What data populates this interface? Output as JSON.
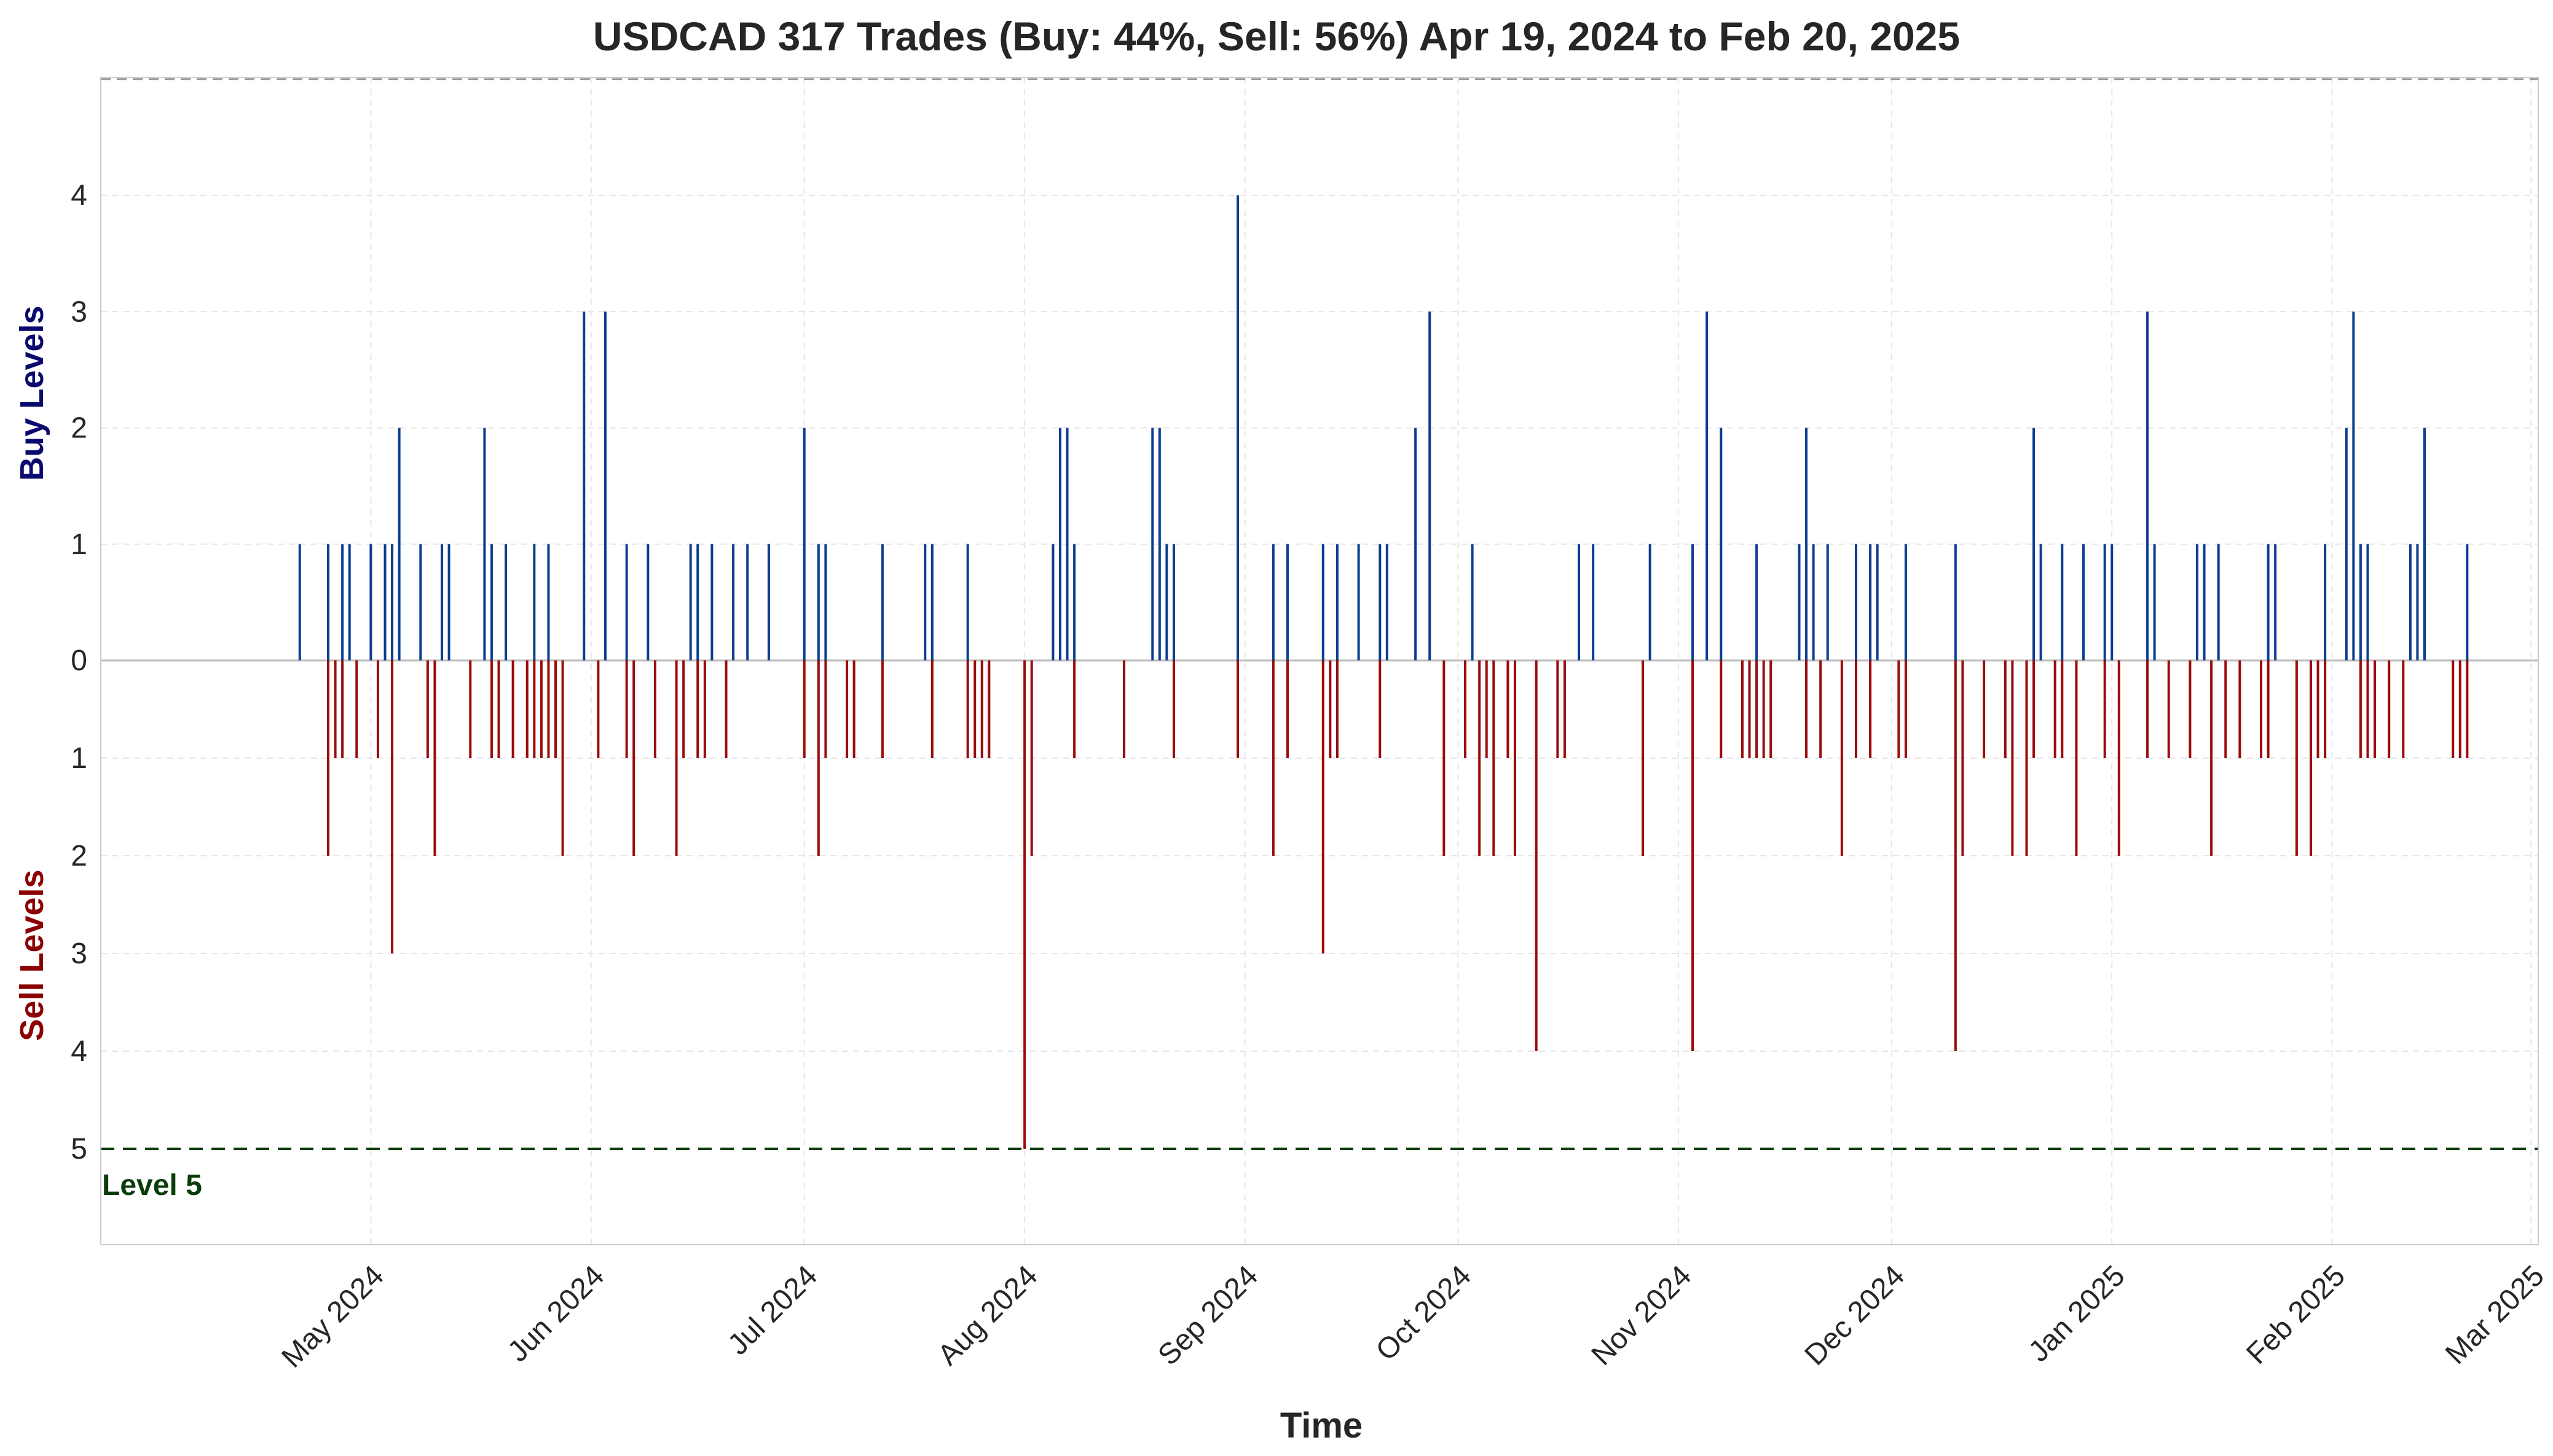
{
  "chart_data": {
    "type": "bar",
    "title": "USDCAD 317 Trades (Buy: 44%, Sell: 56%) Apr 19, 2024 to Feb 20, 2025",
    "xlabel": "Time",
    "ylabel_buy": "Buy Levels",
    "ylabel_sell": "Sell Levels",
    "level5_label": "Level 5",
    "x_ticks": [
      "May 2024",
      "Jun 2024",
      "Jul 2024",
      "Aug 2024",
      "Sep 2024",
      "Oct 2024",
      "Nov 2024",
      "Dec 2024",
      "Jan 2025",
      "Feb 2025",
      "Mar 2025"
    ],
    "y_ticks_buy": [
      "0",
      "1",
      "2",
      "3",
      "4"
    ],
    "y_ticks_sell": [
      "1",
      "2",
      "3",
      "4",
      "5"
    ],
    "x_range": [
      "2024-03-24",
      "2025-03-02"
    ],
    "buy_ylim": [
      0,
      5
    ],
    "sell_ylim": [
      0,
      6
    ],
    "grid": true,
    "colors": {
      "buy": "#0b3d91",
      "sell": "#9b0b0b",
      "level5": "#0a3d0a",
      "buy_label": "#0a0a6e",
      "sell_label": "#8b0000"
    },
    "series": [
      {
        "name": "Buy",
        "points": [
          [
            "2024-04-21",
            1
          ],
          [
            "2024-04-25",
            1
          ],
          [
            "2024-04-27",
            1
          ],
          [
            "2024-04-28",
            1
          ],
          [
            "2024-05-01",
            1
          ],
          [
            "2024-05-03",
            1
          ],
          [
            "2024-05-04",
            1
          ],
          [
            "2024-05-05",
            2
          ],
          [
            "2024-05-08",
            1
          ],
          [
            "2024-05-11",
            1
          ],
          [
            "2024-05-12",
            1
          ],
          [
            "2024-05-17",
            2
          ],
          [
            "2024-05-18",
            1
          ],
          [
            "2024-05-20",
            1
          ],
          [
            "2024-05-24",
            1
          ],
          [
            "2024-05-26",
            1
          ],
          [
            "2024-05-31",
            3
          ],
          [
            "2024-06-03",
            3
          ],
          [
            "2024-06-06",
            1
          ],
          [
            "2024-06-09",
            1
          ],
          [
            "2024-06-15",
            1
          ],
          [
            "2024-06-16",
            1
          ],
          [
            "2024-06-18",
            1
          ],
          [
            "2024-06-21",
            1
          ],
          [
            "2024-06-23",
            1
          ],
          [
            "2024-06-26",
            1
          ],
          [
            "2024-07-01",
            2
          ],
          [
            "2024-07-03",
            1
          ],
          [
            "2024-07-04",
            1
          ],
          [
            "2024-07-12",
            1
          ],
          [
            "2024-07-18",
            1
          ],
          [
            "2024-07-19",
            1
          ],
          [
            "2024-07-24",
            1
          ],
          [
            "2024-08-05",
            1
          ],
          [
            "2024-08-06",
            2
          ],
          [
            "2024-08-07",
            2
          ],
          [
            "2024-08-08",
            1
          ],
          [
            "2024-08-19",
            2
          ],
          [
            "2024-08-20",
            2
          ],
          [
            "2024-08-21",
            1
          ],
          [
            "2024-08-22",
            1
          ],
          [
            "2024-08-31",
            4
          ],
          [
            "2024-09-05",
            1
          ],
          [
            "2024-09-07",
            1
          ],
          [
            "2024-09-12",
            1
          ],
          [
            "2024-09-14",
            1
          ],
          [
            "2024-09-17",
            1
          ],
          [
            "2024-09-20",
            1
          ],
          [
            "2024-09-21",
            1
          ],
          [
            "2024-09-25",
            2
          ],
          [
            "2024-09-27",
            3
          ],
          [
            "2024-10-03",
            1
          ],
          [
            "2024-10-18",
            1
          ],
          [
            "2024-10-20",
            1
          ],
          [
            "2024-10-28",
            1
          ],
          [
            "2024-11-03",
            1
          ],
          [
            "2024-11-05",
            3
          ],
          [
            "2024-11-07",
            2
          ],
          [
            "2024-11-12",
            1
          ],
          [
            "2024-11-18",
            1
          ],
          [
            "2024-11-19",
            2
          ],
          [
            "2024-11-20",
            1
          ],
          [
            "2024-11-22",
            1
          ],
          [
            "2024-11-26",
            1
          ],
          [
            "2024-11-28",
            1
          ],
          [
            "2024-11-29",
            1
          ],
          [
            "2024-12-03",
            1
          ],
          [
            "2024-12-10",
            1
          ],
          [
            "2024-12-21",
            2
          ],
          [
            "2024-12-22",
            1
          ],
          [
            "2024-12-25",
            1
          ],
          [
            "2024-12-28",
            1
          ],
          [
            "2024-12-31",
            1
          ],
          [
            "2025-01-01",
            1
          ],
          [
            "2025-01-06",
            3
          ],
          [
            "2025-01-07",
            1
          ],
          [
            "2025-01-13",
            1
          ],
          [
            "2025-01-14",
            1
          ],
          [
            "2025-01-16",
            1
          ],
          [
            "2025-01-23",
            1
          ],
          [
            "2025-01-24",
            1
          ],
          [
            "2025-01-31",
            1
          ],
          [
            "2025-02-03",
            2
          ],
          [
            "2025-02-04",
            3
          ],
          [
            "2025-02-05",
            1
          ],
          [
            "2025-02-06",
            1
          ],
          [
            "2025-02-12",
            1
          ],
          [
            "2025-02-13",
            1
          ],
          [
            "2025-02-14",
            2
          ],
          [
            "2025-02-20",
            1
          ]
        ]
      },
      {
        "name": "Sell",
        "points": [
          [
            "2024-04-25",
            2
          ],
          [
            "2024-04-26",
            1
          ],
          [
            "2024-04-27",
            1
          ],
          [
            "2024-04-29",
            1
          ],
          [
            "2024-05-02",
            1
          ],
          [
            "2024-05-04",
            3
          ],
          [
            "2024-05-09",
            1
          ],
          [
            "2024-05-10",
            2
          ],
          [
            "2024-05-15",
            1
          ],
          [
            "2024-05-18",
            1
          ],
          [
            "2024-05-19",
            1
          ],
          [
            "2024-05-21",
            1
          ],
          [
            "2024-05-23",
            1
          ],
          [
            "2024-05-24",
            1
          ],
          [
            "2024-05-25",
            1
          ],
          [
            "2024-05-26",
            1
          ],
          [
            "2024-05-27",
            1
          ],
          [
            "2024-05-28",
            2
          ],
          [
            "2024-06-02",
            1
          ],
          [
            "2024-06-06",
            1
          ],
          [
            "2024-06-07",
            2
          ],
          [
            "2024-06-10",
            1
          ],
          [
            "2024-06-13",
            2
          ],
          [
            "2024-06-14",
            1
          ],
          [
            "2024-06-16",
            1
          ],
          [
            "2024-06-17",
            1
          ],
          [
            "2024-06-20",
            1
          ],
          [
            "2024-07-01",
            1
          ],
          [
            "2024-07-03",
            2
          ],
          [
            "2024-07-04",
            1
          ],
          [
            "2024-07-07",
            1
          ],
          [
            "2024-07-08",
            1
          ],
          [
            "2024-07-12",
            1
          ],
          [
            "2024-07-19",
            1
          ],
          [
            "2024-07-24",
            1
          ],
          [
            "2024-07-25",
            1
          ],
          [
            "2024-07-26",
            1
          ],
          [
            "2024-07-27",
            1
          ],
          [
            "2024-08-01",
            5
          ],
          [
            "2024-08-02",
            2
          ],
          [
            "2024-08-08",
            1
          ],
          [
            "2024-08-15",
            1
          ],
          [
            "2024-08-22",
            1
          ],
          [
            "2024-08-31",
            1
          ],
          [
            "2024-09-05",
            2
          ],
          [
            "2024-09-07",
            1
          ],
          [
            "2024-09-12",
            3
          ],
          [
            "2024-09-13",
            1
          ],
          [
            "2024-09-14",
            1
          ],
          [
            "2024-09-20",
            1
          ],
          [
            "2024-09-29",
            2
          ],
          [
            "2024-10-02",
            1
          ],
          [
            "2024-10-04",
            2
          ],
          [
            "2024-10-05",
            1
          ],
          [
            "2024-10-06",
            2
          ],
          [
            "2024-10-08",
            1
          ],
          [
            "2024-10-09",
            2
          ],
          [
            "2024-10-12",
            4
          ],
          [
            "2024-10-15",
            1
          ],
          [
            "2024-10-16",
            1
          ],
          [
            "2024-10-27",
            2
          ],
          [
            "2024-11-03",
            4
          ],
          [
            "2024-11-07",
            1
          ],
          [
            "2024-11-10",
            1
          ],
          [
            "2024-11-11",
            1
          ],
          [
            "2024-11-12",
            1
          ],
          [
            "2024-11-13",
            1
          ],
          [
            "2024-11-14",
            1
          ],
          [
            "2024-11-19",
            1
          ],
          [
            "2024-11-21",
            1
          ],
          [
            "2024-11-24",
            2
          ],
          [
            "2024-11-26",
            1
          ],
          [
            "2024-11-28",
            1
          ],
          [
            "2024-12-02",
            1
          ],
          [
            "2024-12-03",
            1
          ],
          [
            "2024-12-10",
            4
          ],
          [
            "2024-12-11",
            2
          ],
          [
            "2024-12-14",
            1
          ],
          [
            "2024-12-17",
            1
          ],
          [
            "2024-12-18",
            2
          ],
          [
            "2024-12-20",
            2
          ],
          [
            "2024-12-21",
            1
          ],
          [
            "2024-12-24",
            1
          ],
          [
            "2024-12-25",
            1
          ],
          [
            "2024-12-27",
            2
          ],
          [
            "2024-12-31",
            1
          ],
          [
            "2025-01-02",
            2
          ],
          [
            "2025-01-06",
            1
          ],
          [
            "2025-01-09",
            1
          ],
          [
            "2025-01-12",
            1
          ],
          [
            "2025-01-15",
            2
          ],
          [
            "2025-01-17",
            1
          ],
          [
            "2025-01-19",
            1
          ],
          [
            "2025-01-22",
            1
          ],
          [
            "2025-01-23",
            1
          ],
          [
            "2025-01-27",
            2
          ],
          [
            "2025-01-29",
            2
          ],
          [
            "2025-01-30",
            1
          ],
          [
            "2025-01-31",
            1
          ],
          [
            "2025-02-05",
            1
          ],
          [
            "2025-02-06",
            1
          ],
          [
            "2025-02-07",
            1
          ],
          [
            "2025-02-09",
            1
          ],
          [
            "2025-02-11",
            1
          ],
          [
            "2025-02-18",
            1
          ],
          [
            "2025-02-19",
            1
          ],
          [
            "2025-02-20",
            1
          ]
        ]
      }
    ]
  }
}
